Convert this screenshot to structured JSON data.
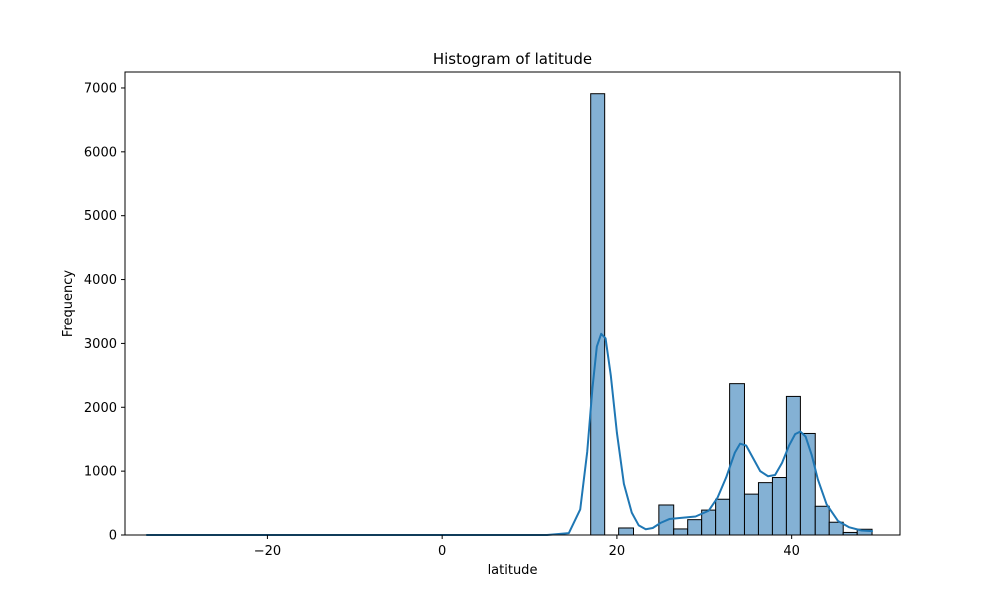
{
  "chart_data": {
    "type": "bar",
    "title": "Histogram of latitude",
    "xlabel": "latitude",
    "ylabel": "Frequency",
    "xlim": [
      -36.3,
      52.4
    ],
    "ylim": [
      0,
      7250
    ],
    "x_ticks": [
      -20,
      0,
      20,
      40
    ],
    "x_tick_labels": [
      "−20",
      "0",
      "20",
      "40"
    ],
    "y_ticks": [
      0,
      1000,
      2000,
      3000,
      4000,
      5000,
      6000,
      7000
    ],
    "y_tick_labels": [
      "0",
      "1000",
      "2000",
      "3000",
      "4000",
      "5000",
      "6000",
      "7000"
    ],
    "grid": false,
    "colors": {
      "bar_fill": "#84b1d4",
      "bar_edge": "#000000",
      "kde_line": "#1f77b4"
    },
    "bins": [
      {
        "x0": 17.0,
        "x1": 18.6,
        "value": 6910
      },
      {
        "x0": 20.2,
        "x1": 21.9,
        "value": 110
      },
      {
        "x0": 24.8,
        "x1": 26.5,
        "value": 470
      },
      {
        "x0": 26.5,
        "x1": 28.1,
        "value": 95
      },
      {
        "x0": 28.1,
        "x1": 29.7,
        "value": 240
      },
      {
        "x0": 29.7,
        "x1": 31.3,
        "value": 390
      },
      {
        "x0": 31.3,
        "x1": 32.9,
        "value": 560
      },
      {
        "x0": 32.9,
        "x1": 34.6,
        "value": 2370
      },
      {
        "x0": 34.6,
        "x1": 36.2,
        "value": 640
      },
      {
        "x0": 36.2,
        "x1": 37.8,
        "value": 820
      },
      {
        "x0": 37.8,
        "x1": 39.4,
        "value": 900
      },
      {
        "x0": 39.4,
        "x1": 41.0,
        "value": 2170
      },
      {
        "x0": 41.0,
        "x1": 42.7,
        "value": 1590
      },
      {
        "x0": 42.7,
        "x1": 44.3,
        "value": 450
      },
      {
        "x0": 44.3,
        "x1": 45.9,
        "value": 200
      },
      {
        "x0": 45.9,
        "x1": 47.5,
        "value": 40
      },
      {
        "x0": 47.5,
        "x1": 49.2,
        "value": 90
      }
    ],
    "kde": {
      "x": [
        -33.8,
        -20,
        0,
        12,
        14.5,
        15.8,
        16.6,
        17.2,
        17.7,
        18.2,
        18.7,
        19.3,
        20.0,
        20.8,
        21.7,
        22.5,
        23.3,
        24.1,
        25.0,
        26.0,
        27.5,
        29.0,
        30.5,
        31.5,
        32.5,
        33.5,
        34.1,
        34.8,
        35.6,
        36.4,
        37.3,
        38.1,
        38.9,
        39.7,
        40.4,
        41.0,
        41.6,
        42.3,
        43.0,
        44.0,
        45.3,
        46.6,
        48.0,
        49.2
      ],
      "y": [
        0,
        0,
        0,
        0,
        30,
        400,
        1300,
        2300,
        2950,
        3150,
        3080,
        2500,
        1600,
        800,
        350,
        150,
        90,
        110,
        190,
        250,
        270,
        290,
        380,
        580,
        900,
        1290,
        1430,
        1400,
        1200,
        1000,
        920,
        940,
        1130,
        1400,
        1580,
        1620,
        1540,
        1250,
        870,
        480,
        220,
        120,
        70,
        60
      ]
    }
  }
}
